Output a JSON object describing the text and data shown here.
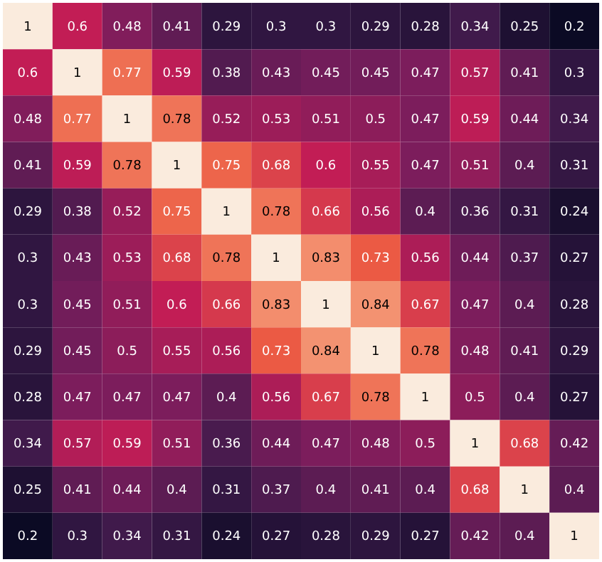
{
  "chart_data": {
    "type": "heatmap",
    "tick_labels": false,
    "data_labels": true,
    "categories": [
      null,
      null,
      null,
      null,
      null,
      null,
      null,
      null,
      null,
      null,
      null,
      null
    ],
    "y_categories": [
      null,
      null,
      null,
      null,
      null,
      null,
      null,
      null,
      null,
      null,
      null,
      null
    ],
    "cells": [
      [
        1,
        0.6,
        0.48,
        0.41,
        0.29,
        0.3,
        0.3,
        0.29,
        0.28,
        0.34,
        0.25,
        0.2
      ],
      [
        0.6,
        1,
        0.77,
        0.59,
        0.38,
        0.43,
        0.45,
        0.45,
        0.47,
        0.57,
        0.41,
        0.3
      ],
      [
        0.48,
        0.77,
        1,
        0.78,
        0.52,
        0.53,
        0.51,
        0.5,
        0.47,
        0.59,
        0.44,
        0.34
      ],
      [
        0.41,
        0.59,
        0.78,
        1,
        0.75,
        0.68,
        0.6,
        0.55,
        0.47,
        0.51,
        0.4,
        0.31
      ],
      [
        0.29,
        0.38,
        0.52,
        0.75,
        1,
        0.78,
        0.66,
        0.56,
        0.4,
        0.36,
        0.31,
        0.24
      ],
      [
        0.3,
        0.43,
        0.53,
        0.68,
        0.78,
        1,
        0.83,
        0.73,
        0.56,
        0.44,
        0.37,
        0.27
      ],
      [
        0.3,
        0.45,
        0.51,
        0.6,
        0.66,
        0.83,
        1,
        0.84,
        0.67,
        0.47,
        0.4,
        0.28
      ],
      [
        0.29,
        0.45,
        0.5,
        0.55,
        0.56,
        0.73,
        0.84,
        1,
        0.78,
        0.48,
        0.41,
        0.29
      ],
      [
        0.28,
        0.47,
        0.47,
        0.47,
        0.4,
        0.56,
        0.67,
        0.78,
        1,
        0.5,
        0.4,
        0.27
      ],
      [
        0.34,
        0.57,
        0.59,
        0.51,
        0.36,
        0.44,
        0.47,
        0.48,
        0.5,
        1,
        0.68,
        0.42
      ],
      [
        0.25,
        0.41,
        0.44,
        0.4,
        0.31,
        0.37,
        0.4,
        0.41,
        0.4,
        0.68,
        1,
        0.4
      ],
      [
        0.2,
        0.3,
        0.34,
        0.31,
        0.24,
        0.27,
        0.28,
        0.29,
        0.27,
        0.42,
        0.4,
        1
      ]
    ]
  }
}
